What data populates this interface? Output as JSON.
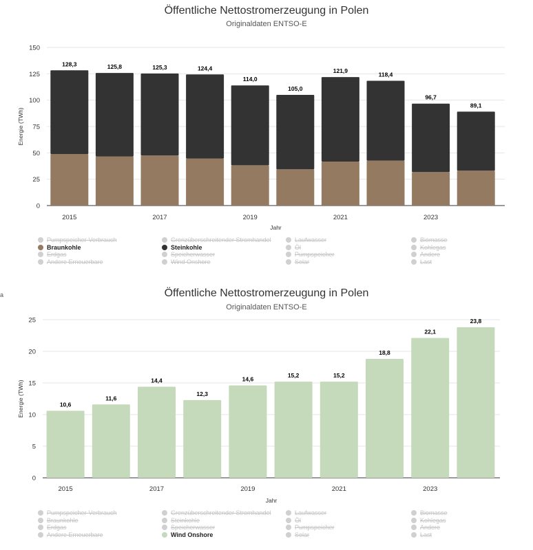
{
  "chart_data": [
    {
      "type": "bar",
      "stacked": true,
      "title": "Öffentliche Nettostromerzeugung in Polen",
      "subtitle": "Originaldaten ENTSO-E",
      "xlabel": "Jahr",
      "ylabel": "Energie (TWh)",
      "ylim": [
        0,
        150
      ],
      "yticks": [
        "0",
        "25",
        "50",
        "75",
        "100",
        "125",
        "150"
      ],
      "categories": [
        "2015",
        "2016",
        "2017",
        "2018",
        "2019",
        "2020",
        "2021",
        "2022",
        "2023",
        "2024"
      ],
      "xtick_labels": [
        "2015",
        "2017",
        "2019",
        "2021",
        "2023"
      ],
      "series": [
        {
          "name": "Braunkohle",
          "color": "#957a62",
          "values": [
            48.9,
            46.6,
            47.5,
            44.6,
            38.2,
            34.4,
            41.7,
            42.6,
            31.8,
            33.1
          ]
        },
        {
          "name": "Steinkohle",
          "color": "#333333",
          "values": [
            79.4,
            79.2,
            77.8,
            79.8,
            75.8,
            70.6,
            80.2,
            75.8,
            64.9,
            56.0
          ]
        }
      ],
      "totals_labels": [
        "128,3",
        "125,8",
        "125,3",
        "124,4",
        "114,0",
        "105,0",
        "121,9",
        "118,4",
        "96,7",
        "89,1"
      ],
      "legend": [
        {
          "label": "Pumpspeicher-Verbrauch",
          "active": false
        },
        {
          "label": "Grenzüberschreitender Stromhandel",
          "active": false
        },
        {
          "label": "Laufwasser",
          "active": false
        },
        {
          "label": "Biomasse",
          "active": false
        },
        {
          "label": "Braunkohle",
          "active": true,
          "color": "#957a62"
        },
        {
          "label": "Steinkohle",
          "active": true,
          "color": "#333333"
        },
        {
          "label": "Öl",
          "active": false
        },
        {
          "label": "Kohlegas",
          "active": false
        },
        {
          "label": "Erdgas",
          "active": false
        },
        {
          "label": "Speicherwasser",
          "active": false
        },
        {
          "label": "Pumpspeicher",
          "active": false
        },
        {
          "label": "Andere",
          "active": false
        },
        {
          "label": "Andere Erneuerbare",
          "active": false
        },
        {
          "label": "Wind Onshore",
          "active": false
        },
        {
          "label": "Solar",
          "active": false
        },
        {
          "label": "Last",
          "active": false
        }
      ]
    },
    {
      "type": "bar",
      "stacked": false,
      "title": "Öffentliche Nettostromerzeugung in Polen",
      "subtitle": "Originaldaten ENTSO-E",
      "xlabel": "Jahr",
      "ylabel": "Energie (TWh)",
      "ylim": [
        0,
        25
      ],
      "yticks": [
        "0",
        "5",
        "10",
        "15",
        "20",
        "25"
      ],
      "categories": [
        "2015",
        "2016",
        "2017",
        "2018",
        "2019",
        "2020",
        "2021",
        "2022",
        "2023",
        "2024"
      ],
      "xtick_labels": [
        "2015",
        "2017",
        "2019",
        "2021",
        "2023"
      ],
      "series": [
        {
          "name": "Wind Onshore",
          "color": "#c5dabb",
          "values": [
            10.6,
            11.6,
            14.4,
            12.3,
            14.6,
            15.2,
            15.2,
            18.8,
            22.1,
            23.8
          ]
        }
      ],
      "totals_labels": [
        "10,6",
        "11,6",
        "14,4",
        "12,3",
        "14,6",
        "15,2",
        "15,2",
        "18,8",
        "22,1",
        "23,8"
      ],
      "legend": [
        {
          "label": "Pumpspeicher-Verbrauch",
          "active": false
        },
        {
          "label": "Grenzüberschreitender Stromhandel",
          "active": false
        },
        {
          "label": "Laufwasser",
          "active": false
        },
        {
          "label": "Biomasse",
          "active": false
        },
        {
          "label": "Braunkohle",
          "active": false
        },
        {
          "label": "Steinkohle",
          "active": false
        },
        {
          "label": "Öl",
          "active": false
        },
        {
          "label": "Kohlegas",
          "active": false
        },
        {
          "label": "Erdgas",
          "active": false
        },
        {
          "label": "Speicherwasser",
          "active": false
        },
        {
          "label": "Pumpspeicher",
          "active": false
        },
        {
          "label": "Andere",
          "active": false
        },
        {
          "label": "Andere Erneuerbare",
          "active": false
        },
        {
          "label": "Wind Onshore",
          "active": true,
          "color": "#c5dabb"
        },
        {
          "label": "Solar",
          "active": false
        },
        {
          "label": "Last",
          "active": false
        }
      ]
    }
  ],
  "page": {
    "side_fragment": "a"
  }
}
